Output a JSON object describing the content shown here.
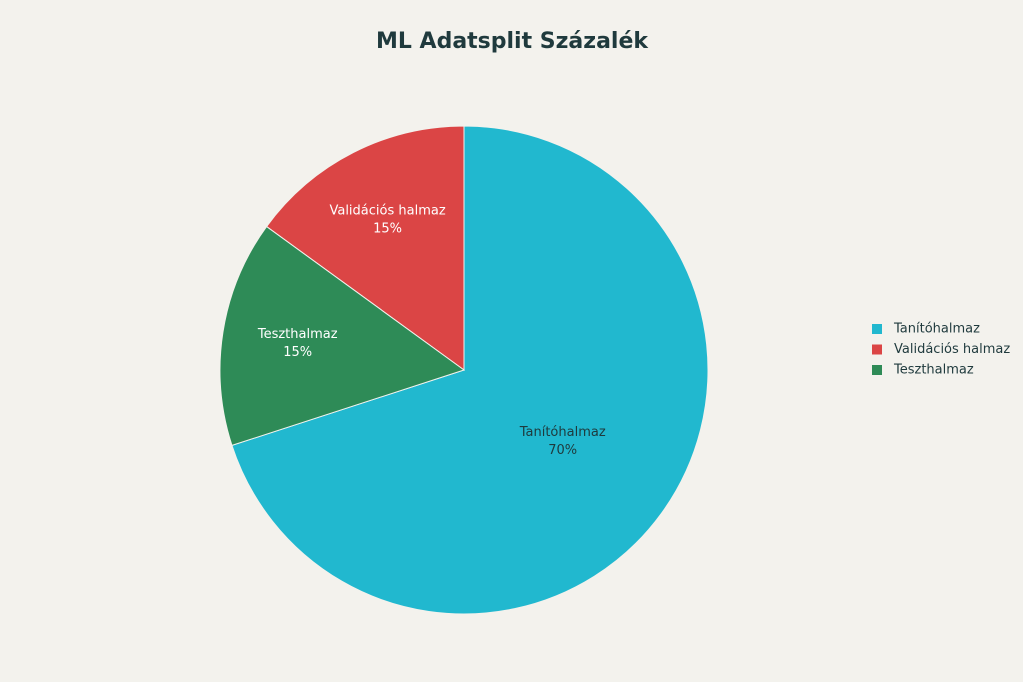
{
  "chart_data": {
    "type": "pie",
    "title": "ML Adatsplit Százalék",
    "categories": [
      "Tanítóhalmaz",
      "Validációs halmaz",
      "Teszthalmaz"
    ],
    "values": [
      70,
      15,
      15
    ],
    "value_labels": [
      "70%",
      "15%",
      "15%"
    ],
    "colors": [
      "#21b8cf",
      "#db4545",
      "#2e8b57"
    ],
    "legend": "right"
  }
}
